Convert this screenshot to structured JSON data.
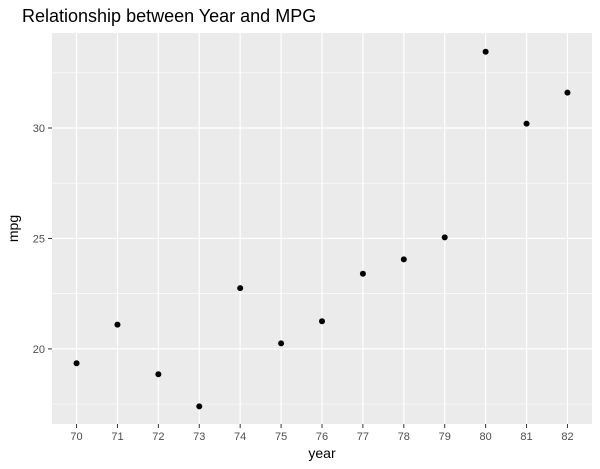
{
  "chart_data": {
    "type": "scatter",
    "title": "Relationship between Year and MPG",
    "xlabel": "year",
    "ylabel": "mpg",
    "x": [
      70,
      71,
      72,
      73,
      74,
      75,
      76,
      77,
      78,
      79,
      80,
      81,
      82
    ],
    "y": [
      19.35,
      21.1,
      18.85,
      17.4,
      22.75,
      20.25,
      21.25,
      23.4,
      24.05,
      25.05,
      33.45,
      30.2,
      31.6
    ],
    "xlim": [
      69.4,
      82.6
    ],
    "ylim": [
      16.6,
      34.3
    ],
    "xticks": [
      70,
      71,
      72,
      73,
      74,
      75,
      76,
      77,
      78,
      79,
      80,
      81,
      82
    ],
    "yticks": [
      20,
      25,
      30
    ],
    "grid": true,
    "panel_background": "#ebebeb",
    "grid_color": "#ffffff",
    "point_color": "#000000"
  }
}
